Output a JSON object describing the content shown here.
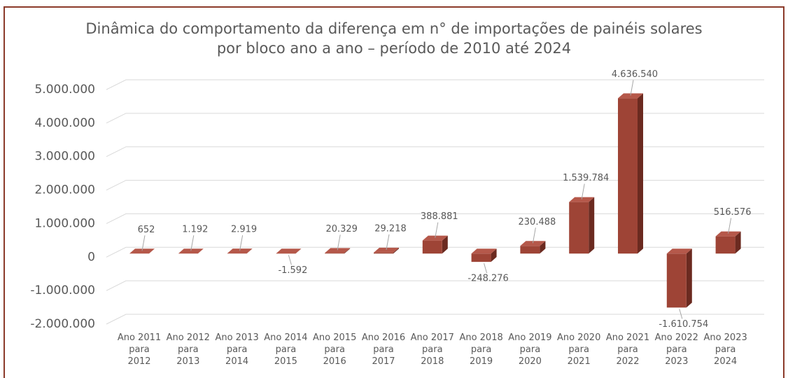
{
  "chart_data": {
    "type": "bar3d",
    "title": "Dinâmica do comportamento da diferença em n° de importações de painéis solares por bloco ano a ano – período de 2010 até 2024",
    "categories": [
      "Ano 2011 para 2012",
      "Ano 2012 para 2013",
      "Ano 2013 para 2014",
      "Ano 2014 para 2015",
      "Ano 2015 para 2016",
      "Ano 2016 para 2017",
      "Ano 2017 para 2018",
      "Ano 2018 para 2019",
      "Ano 2019 para 2020",
      "Ano 2020 para 2021",
      "Ano 2021 para 2022",
      "Ano 2022 para 2023",
      "Ano 2023 para 2024"
    ],
    "values": [
      652,
      1192,
      2919,
      -1592,
      20329,
      29218,
      388881,
      -248276,
      230488,
      1539784,
      4636540,
      -1610754,
      516576
    ],
    "value_labels": [
      "652",
      "1.192",
      "2.919",
      "-1.592",
      "20.329",
      "29.218",
      "388.881",
      "-248.276",
      "230.488",
      "1.539.784",
      "4.636.540",
      "-1.610.754",
      "516.576"
    ],
    "color": "#9e4436",
    "ylim": [
      -2000000,
      5000000
    ],
    "yticks": [
      {
        "value": -2000000,
        "label": "-2.000.000"
      },
      {
        "value": -1000000,
        "label": "-1.000.000"
      },
      0,
      {
        "value": 1000000,
        "label": "1.000.000"
      },
      {
        "value": 2000000,
        "label": "2.000.000"
      },
      {
        "value": 3000000,
        "label": "3.000.000"
      },
      {
        "value": 4000000,
        "label": "4.000.000"
      },
      {
        "value": 5000000,
        "label": "5.000.000"
      }
    ],
    "grid": true
  }
}
